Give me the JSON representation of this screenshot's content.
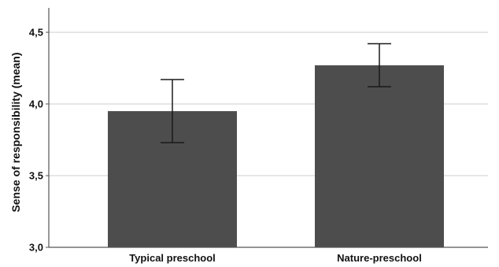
{
  "chart_data": {
    "type": "bar",
    "categories": [
      "Typical preschool",
      "Nature-preschool"
    ],
    "values": [
      3.95,
      4.27
    ],
    "error_bars": [
      {
        "low": 3.73,
        "high": 4.17
      },
      {
        "low": 4.12,
        "high": 4.42
      }
    ],
    "ylabel": "Sense of responsibility (mean)",
    "xlabel": "",
    "ylim": [
      3.0,
      4.6
    ],
    "yticks": [
      3.0,
      3.5,
      4.0,
      4.5
    ],
    "ytick_labels": [
      "3,0",
      "3,5",
      "4,0",
      "4,5"
    ],
    "grid": true,
    "legend": "none",
    "colors": {
      "bar": "#4d4d4d",
      "grid": "#d6d6d6",
      "axis": "#555555",
      "errorbar": "#1a1a1a"
    }
  }
}
